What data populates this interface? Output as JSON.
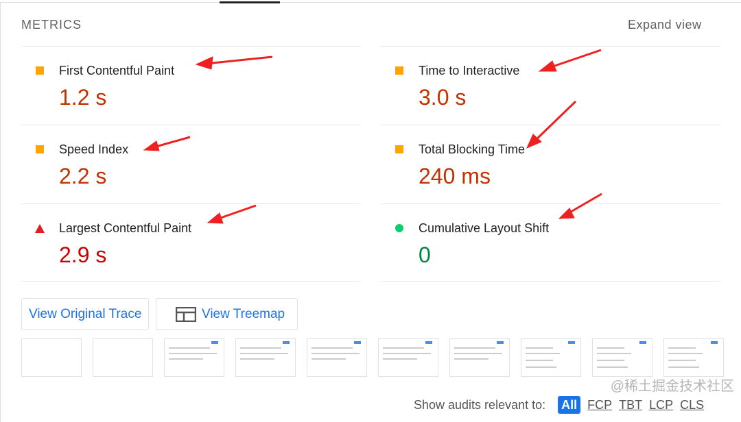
{
  "header": {
    "title": "METRICS",
    "expand_label": "Expand view"
  },
  "metrics": {
    "left": [
      {
        "name": "First Contentful Paint",
        "value": "1.2 s",
        "status": "average",
        "color": "#c33300"
      },
      {
        "name": "Speed Index",
        "value": "2.2 s",
        "status": "average",
        "color": "#c33300"
      },
      {
        "name": "Largest Contentful Paint",
        "value": "2.9 s",
        "status": "fail",
        "color": "#cc0000"
      }
    ],
    "right": [
      {
        "name": "Time to Interactive",
        "value": "3.0 s",
        "status": "average",
        "color": "#c33300"
      },
      {
        "name": "Total Blocking Time",
        "value": "240 ms",
        "status": "average",
        "color": "#c33300"
      },
      {
        "name": "Cumulative Layout Shift",
        "value": "0",
        "status": "pass",
        "color": "#018642"
      }
    ]
  },
  "buttons": {
    "trace": "View Original Trace",
    "treemap": "View Treemap"
  },
  "filter": {
    "label": "Show audits relevant to:",
    "items": [
      "All",
      "FCP",
      "TBT",
      "LCP",
      "CLS"
    ],
    "selected": "All"
  },
  "watermark": "@稀土掘金技术社区"
}
